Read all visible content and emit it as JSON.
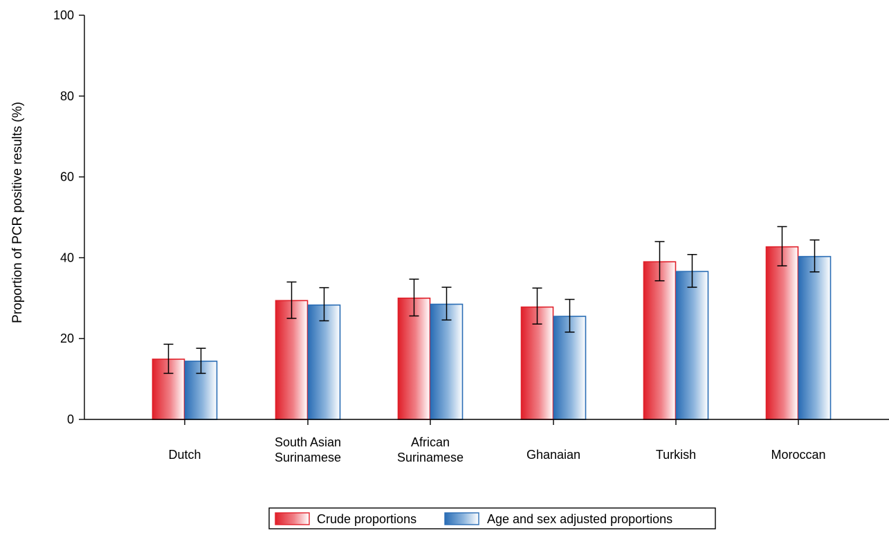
{
  "chart_data": {
    "type": "bar",
    "ylabel": "Proportion of PCR positive results (%)",
    "xlabel": "",
    "ylim": [
      0,
      100
    ],
    "yticks": [
      0,
      20,
      40,
      60,
      80,
      100
    ],
    "categories": [
      [
        "Dutch"
      ],
      [
        "South Asian",
        "Surinamese"
      ],
      [
        "African",
        "Surinamese"
      ],
      [
        "Ghanaian"
      ],
      [
        "Turkish"
      ],
      [
        "Moroccan"
      ]
    ],
    "series": [
      {
        "name": "Crude proportions",
        "color": "#e0202a",
        "values": [
          14.9,
          29.4,
          30.0,
          27.8,
          39.0,
          42.7
        ],
        "error_low": [
          11.4,
          25.0,
          25.6,
          23.6,
          34.3,
          38.0
        ],
        "error_high": [
          18.6,
          34.0,
          34.7,
          32.5,
          44.0,
          47.7
        ]
      },
      {
        "name": "Age and sex adjusted proportions",
        "color": "#2a6db5",
        "values": [
          14.4,
          28.3,
          28.5,
          25.5,
          36.6,
          40.3
        ],
        "error_low": [
          11.4,
          24.4,
          24.6,
          21.6,
          32.7,
          36.5
        ],
        "error_high": [
          17.6,
          32.6,
          32.7,
          29.7,
          40.8,
          44.4
        ]
      }
    ],
    "legend_position": "bottom-center",
    "grid": false,
    "error_bars": true
  }
}
